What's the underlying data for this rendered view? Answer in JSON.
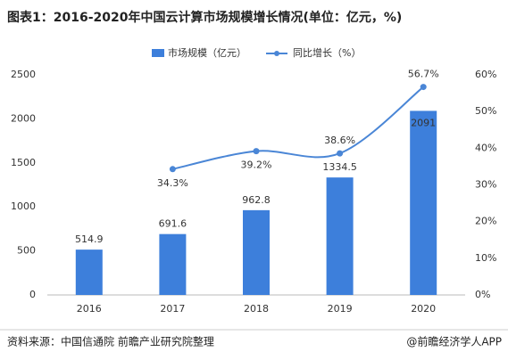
{
  "chart_data": {
    "type": "bar-line",
    "title": "图表1：2016-2020年中国云计算市场规模增长情况(单位：亿元，%)",
    "categories": [
      "2016",
      "2017",
      "2018",
      "2019",
      "2020"
    ],
    "series": [
      {
        "name": "市场规模（亿元）",
        "type": "bar",
        "color": "#3d7fdb",
        "values": [
          514.9,
          691.6,
          962.8,
          1334.5,
          2091
        ]
      },
      {
        "name": "同比增长（%）",
        "type": "line",
        "axis": "y2",
        "color": "#4a86d6",
        "values": [
          null,
          34.3,
          39.2,
          38.6,
          56.7
        ],
        "value_labels": [
          null,
          "34.3%",
          "39.2%",
          "38.6%",
          "56.7%"
        ]
      }
    ],
    "ylim": [
      0,
      2500
    ],
    "yticks": [
      0,
      500,
      1000,
      1500,
      2000,
      2500
    ],
    "y2lim": [
      0,
      60
    ],
    "y2ticks": [
      {
        "value": 0,
        "label": "0%"
      },
      {
        "value": 10,
        "label": "10%"
      },
      {
        "value": 20,
        "label": "20%"
      },
      {
        "value": 30,
        "label": "30%"
      },
      {
        "value": 40,
        "label": "40%"
      },
      {
        "value": 50,
        "label": "50%"
      },
      {
        "value": 60,
        "label": "60%"
      }
    ],
    "legend": "top",
    "source": "资料来源：中国信通院 前瞻产业研究院整理",
    "credit": "@前瞻经济学人APP"
  }
}
